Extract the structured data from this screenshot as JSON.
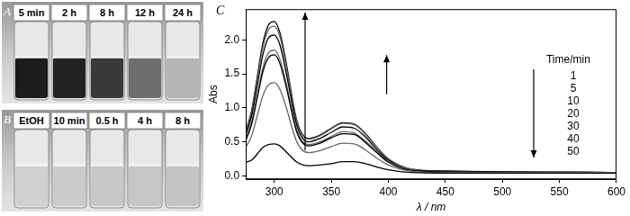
{
  "photos": [
    {
      "label": "A",
      "vials": [
        "5 min",
        "2 h",
        "8 h",
        "12 h",
        "24 h"
      ]
    },
    {
      "label": "B",
      "vials": [
        "EtOH",
        "10 min",
        "0.5 h",
        "4 h",
        "8 h"
      ]
    }
  ],
  "chart_label": "C",
  "chart_data": {
    "type": "line",
    "x_label": "λ / nm",
    "y_label": "Abs",
    "x": [
      275,
      280,
      285,
      290,
      295,
      300,
      305,
      310,
      320,
      330,
      340,
      350,
      360,
      370,
      380,
      390,
      400,
      420,
      450,
      500,
      550,
      600
    ],
    "xlim": [
      275,
      600
    ],
    "xticks": [
      300,
      350,
      400,
      450,
      500,
      550,
      600
    ],
    "ylim": [
      -0.05,
      2.45
    ],
    "yticks": [
      {
        "value": 0,
        "label": "0.0"
      },
      {
        "value": 0.5,
        "label": "0.5"
      },
      {
        "value": 1,
        "label": "1.0"
      },
      {
        "value": 1.5,
        "label": "1.5"
      },
      {
        "value": 2,
        "label": "2.0"
      }
    ],
    "grid": false,
    "legend": "right",
    "legend_title": "Time/min",
    "marker": "none",
    "line_style": "solid",
    "series": [
      {
        "name": "1",
        "color": "#000000",
        "values": [
          0.2,
          0.23,
          0.32,
          0.42,
          0.46,
          0.47,
          0.44,
          0.36,
          0.2,
          0.15,
          0.16,
          0.18,
          0.21,
          0.21,
          0.18,
          0.13,
          0.09,
          0.05,
          0.04,
          0.04,
          0.04,
          0.04
        ]
      },
      {
        "name": "5",
        "color": "#666666",
        "values": [
          0.42,
          0.58,
          0.88,
          1.18,
          1.34,
          1.37,
          1.27,
          1.03,
          0.49,
          0.34,
          0.37,
          0.43,
          0.48,
          0.47,
          0.38,
          0.26,
          0.16,
          0.07,
          0.05,
          0.05,
          0.05,
          0.05
        ]
      },
      {
        "name": "10",
        "color": "#000000",
        "values": [
          0.52,
          0.75,
          1.14,
          1.53,
          1.74,
          1.78,
          1.65,
          1.34,
          0.63,
          0.44,
          0.48,
          0.56,
          0.62,
          0.61,
          0.49,
          0.34,
          0.2,
          0.08,
          0.06,
          0.05,
          0.05,
          0.05
        ]
      },
      {
        "name": "20",
        "color": "#666666",
        "values": [
          0.54,
          0.78,
          1.18,
          1.59,
          1.81,
          1.85,
          1.71,
          1.39,
          0.66,
          0.46,
          0.5,
          0.58,
          0.65,
          0.63,
          0.51,
          0.35,
          0.21,
          0.09,
          0.06,
          0.05,
          0.05,
          0.05
        ]
      },
      {
        "name": "30",
        "color": "#000000",
        "values": [
          0.6,
          0.87,
          1.32,
          1.78,
          2.03,
          2.07,
          1.92,
          1.55,
          0.73,
          0.5,
          0.55,
          0.64,
          0.72,
          0.7,
          0.57,
          0.38,
          0.23,
          0.09,
          0.07,
          0.06,
          0.05,
          0.05
        ]
      },
      {
        "name": "40",
        "color": "#666666",
        "values": [
          0.64,
          0.92,
          1.41,
          1.89,
          2.15,
          2.2,
          2.04,
          1.65,
          0.78,
          0.54,
          0.59,
          0.69,
          0.77,
          0.75,
          0.61,
          0.41,
          0.25,
          0.1,
          0.07,
          0.06,
          0.06,
          0.05
        ]
      },
      {
        "name": "50",
        "color": "#000000",
        "values": [
          0.66,
          0.95,
          1.45,
          1.95,
          2.22,
          2.27,
          2.1,
          1.7,
          0.8,
          0.55,
          0.6,
          0.7,
          0.78,
          0.76,
          0.62,
          0.42,
          0.25,
          0.1,
          0.07,
          0.06,
          0.06,
          0.05
        ]
      }
    ]
  }
}
